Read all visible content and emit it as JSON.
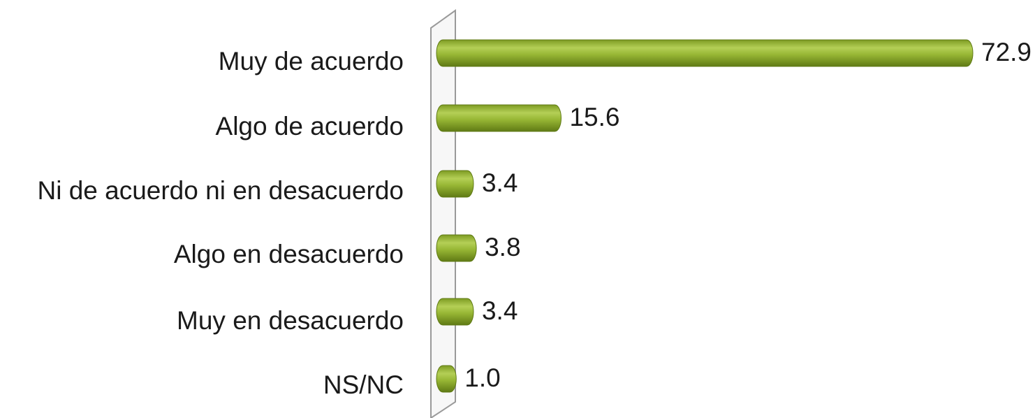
{
  "chart_data": {
    "type": "bar",
    "orientation": "horizontal",
    "categories": [
      "Muy de acuerdo",
      "Algo de acuerdo",
      "Ni de acuerdo ni en desacuerdo",
      "Algo en desacuerdo",
      "Muy en desacuerdo",
      "NS/NC"
    ],
    "values": [
      72.9,
      15.6,
      3.4,
      3.8,
      3.4,
      1.0
    ],
    "value_labels": [
      "72.9",
      "15.6",
      "3.4",
      "3.8",
      "3.4",
      "1.0"
    ],
    "color": "#8aab2a"
  }
}
